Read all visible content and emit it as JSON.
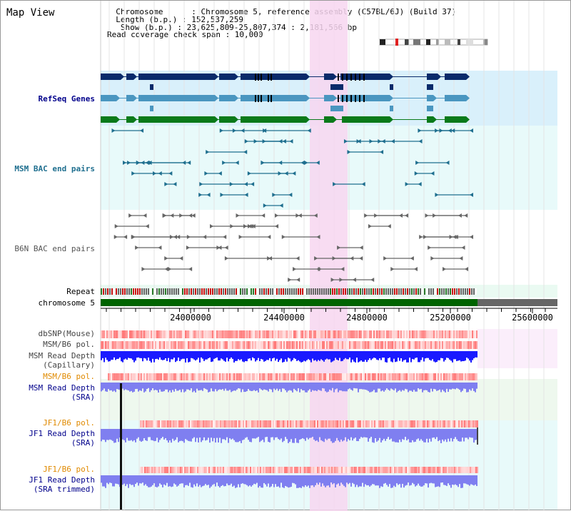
{
  "header": {
    "title": "Map View",
    "info_lines": [
      "  Chromosome      : Chromosome 5, reference assembly (C57BL/6J) (Build 37)",
      "  Length (b.p.) : 152,537,259",
      "   Show (b.p.) : 23,625,809-25,807,374 : 2,181,566 bp",
      "Read coverage check span : 10,000"
    ]
  },
  "tracks": [
    {
      "label": "RefSeq Genes",
      "color": "#00008b"
    },
    {
      "label": "MSM BAC end pairs",
      "color": "#1f6f8f"
    },
    {
      "label": "B6N BAC end pairs",
      "color": "#555555"
    },
    {
      "label": "Repeat",
      "color": "#000000"
    },
    {
      "label": "chromosome 5",
      "color": "#000000"
    },
    {
      "label": "dbSNP(Mouse)",
      "color": "#444444"
    },
    {
      "label": "MSM/B6 pol.",
      "color": "#444444"
    },
    {
      "label": "MSM Read Depth\n(Capillary)",
      "color": "#444444"
    },
    {
      "label": "MSM/B6 pol.",
      "color": "#e08a00"
    },
    {
      "label": "MSM Read Depth\n(SRA)",
      "color": "#00008b"
    },
    {
      "label": "JF1/B6 pol.",
      "color": "#e08a00"
    },
    {
      "label": "JF1 Read Depth\n(SRA)",
      "color": "#00008b"
    },
    {
      "label": "JF1/B6 pol.",
      "color": "#e08a00"
    },
    {
      "label": "JF1 Read Depth\n(SRA trimmed)",
      "color": "#00008b"
    }
  ],
  "ruler": {
    "ticks": [
      "24000000",
      "24400000",
      "24800000",
      "25200000",
      "25600000"
    ]
  },
  "colors": {
    "highlight": "#f7d6f0",
    "refseq_bg": "#d9f0fb",
    "bac_bg": "#e8fafa",
    "chromosome_bar": "#006400",
    "snp": "#ff5a5a",
    "depth_capillary": "#1a1aff",
    "depth_sra": "#7f7ff0"
  }
}
